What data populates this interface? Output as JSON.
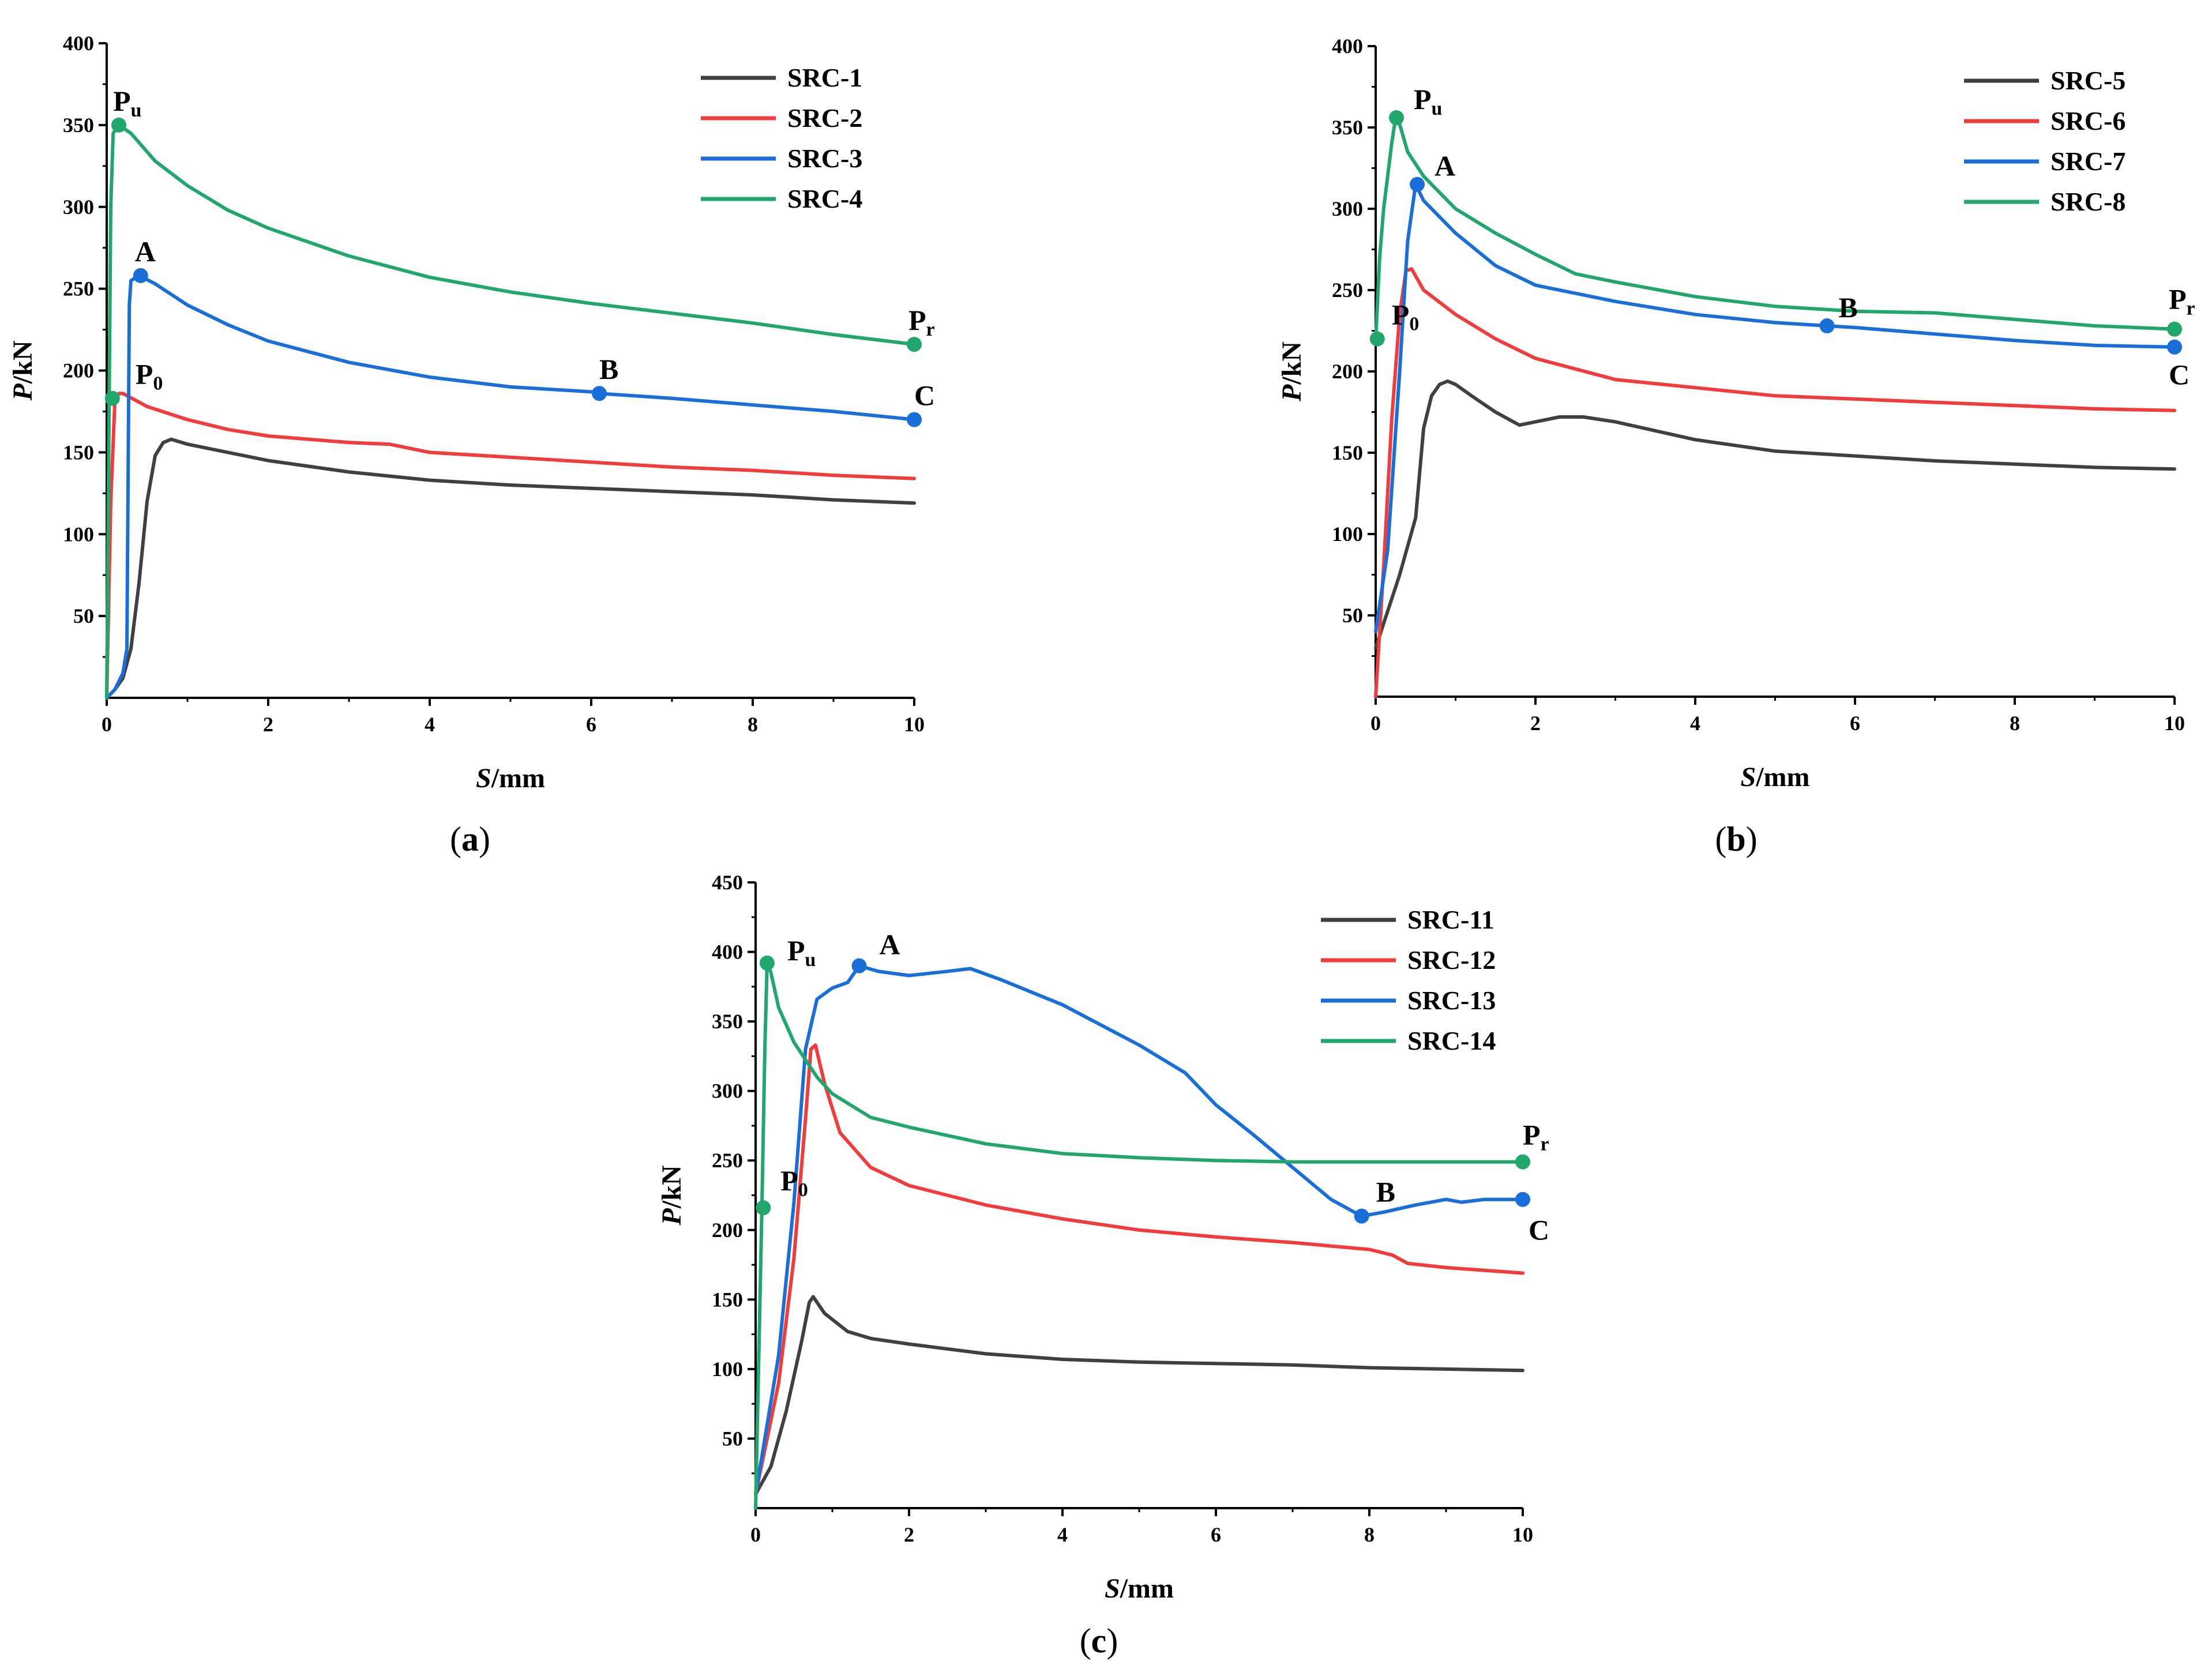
{
  "chart_data": [
    {
      "type": "line",
      "panel_label": "(a)",
      "xlabel": "S/mm",
      "ylabel": "P/kN",
      "xlim": [
        0,
        10
      ],
      "ylim": [
        0,
        400
      ],
      "xticks": [
        "0",
        "2",
        "4",
        "6",
        "8",
        "10"
      ],
      "yticks": [
        "50",
        "100",
        "150",
        "200",
        "250",
        "300",
        "350",
        "400"
      ],
      "legend_position": "top-right",
      "series": [
        {
          "name": "SRC-1",
          "color": "#404040",
          "x": [
            0,
            0.1,
            0.2,
            0.3,
            0.4,
            0.5,
            0.6,
            0.7,
            0.8,
            1,
            1.5,
            2,
            3,
            4,
            5,
            6,
            7,
            8,
            9,
            10
          ],
          "y": [
            0,
            5,
            12,
            30,
            70,
            120,
            148,
            156,
            158,
            155,
            150,
            145,
            138,
            133,
            130,
            128,
            126,
            124,
            121,
            119
          ]
        },
        {
          "name": "SRC-2",
          "color": "#f03c3c",
          "x": [
            0,
            0.05,
            0.1,
            0.15,
            0.2,
            0.5,
            1,
            1.5,
            2,
            3,
            3.5,
            4,
            5,
            6,
            7,
            8,
            9,
            10
          ],
          "y": [
            0,
            120,
            180,
            186,
            186,
            178,
            170,
            164,
            160,
            156,
            155,
            150,
            147,
            144,
            141,
            139,
            136,
            134
          ]
        },
        {
          "name": "SRC-3",
          "color": "#1a6ed8",
          "x": [
            0,
            0.1,
            0.2,
            0.25,
            0.28,
            0.3,
            0.4,
            0.6,
            1,
            1.5,
            2,
            3,
            4,
            5,
            6,
            6.1,
            7,
            8,
            9,
            10
          ],
          "y": [
            0,
            5,
            15,
            30,
            240,
            255,
            258,
            253,
            240,
            228,
            218,
            205,
            196,
            190,
            187,
            186,
            183,
            179,
            175,
            170
          ]
        },
        {
          "name": "SRC-4",
          "color": "#21a66b",
          "x": [
            0,
            0.05,
            0.08,
            0.15,
            0.3,
            0.6,
            1,
            1.5,
            2,
            3,
            4,
            5,
            6,
            7,
            8,
            9,
            10
          ],
          "y": [
            0,
            300,
            345,
            350,
            345,
            328,
            313,
            298,
            287,
            270,
            257,
            248,
            241,
            235,
            229,
            222,
            216
          ]
        }
      ],
      "markers": [
        {
          "label": "P",
          "sub": "u",
          "x": 0.15,
          "y": 350,
          "color": "#21a66b",
          "dx": -10,
          "dy": -25
        },
        {
          "label": "P",
          "sub": "0",
          "x": 0.07,
          "y": 183,
          "color": "#21a66b",
          "dx": 40,
          "dy": -25
        },
        {
          "label": "A",
          "x": 0.42,
          "y": 258,
          "color": "#1a6ed8",
          "dx": -10,
          "dy": -25
        },
        {
          "label": "B",
          "x": 6.1,
          "y": 186,
          "color": "#1a6ed8",
          "dx": 0,
          "dy": -25
        },
        {
          "label": "C",
          "x": 10,
          "y": 170,
          "color": "#1a6ed8",
          "dx": 0,
          "dy": -25
        },
        {
          "label": "P",
          "sub": "r",
          "x": 10,
          "y": 216,
          "color": "#21a66b",
          "dx": -10,
          "dy": -25
        }
      ]
    },
    {
      "type": "line",
      "panel_label": "(b)",
      "xlabel": "S/mm",
      "ylabel": "P/kN",
      "xlim": [
        0,
        10
      ],
      "ylim": [
        0,
        400
      ],
      "xticks": [
        "0",
        "2",
        "4",
        "6",
        "8",
        "10"
      ],
      "yticks": [
        "50",
        "100",
        "150",
        "200",
        "250",
        "300",
        "350",
        "400"
      ],
      "legend_position": "top-right",
      "series": [
        {
          "name": "SRC-5",
          "color": "#404040",
          "x": [
            0,
            0.1,
            0.3,
            0.5,
            0.6,
            0.7,
            0.8,
            0.9,
            1,
            1.2,
            1.5,
            1.8,
            2,
            2.3,
            2.6,
            3,
            4,
            5,
            6,
            7,
            8,
            9,
            10
          ],
          "y": [
            30,
            45,
            75,
            110,
            165,
            185,
            192,
            194,
            192,
            185,
            175,
            167,
            169,
            172,
            172,
            169,
            158,
            151,
            148,
            145,
            143,
            141,
            140
          ]
        },
        {
          "name": "SRC-6",
          "color": "#f03c3c",
          "x": [
            0,
            0.1,
            0.2,
            0.3,
            0.38,
            0.45,
            0.6,
            1,
            1.5,
            2,
            3,
            4,
            5,
            6,
            7,
            8,
            9,
            10
          ],
          "y": [
            0,
            80,
            170,
            235,
            262,
            263,
            250,
            235,
            220,
            208,
            195,
            190,
            185,
            183,
            181,
            179,
            177,
            176
          ]
        },
        {
          "name": "SRC-7",
          "color": "#1a6ed8",
          "x": [
            0,
            0.15,
            0.3,
            0.4,
            0.5,
            0.6,
            1,
            1.5,
            2,
            3,
            4,
            5,
            5.65,
            6,
            7,
            8,
            9,
            10
          ],
          "y": [
            40,
            90,
            200,
            280,
            315,
            305,
            285,
            265,
            253,
            243,
            235,
            230,
            228,
            227,
            223,
            219,
            216,
            215
          ]
        },
        {
          "name": "SRC-8",
          "color": "#21a66b",
          "x": [
            0,
            0.05,
            0.1,
            0.2,
            0.25,
            0.3,
            0.4,
            0.6,
            1,
            1.5,
            2,
            2.5,
            3,
            4,
            5,
            6,
            7,
            8,
            9,
            10
          ],
          "y": [
            219,
            270,
            300,
            340,
            356,
            352,
            335,
            320,
            300,
            285,
            272,
            260,
            255,
            246,
            240,
            237,
            236,
            232,
            228,
            226
          ]
        }
      ],
      "markers": [
        {
          "label": "P",
          "sub": "u",
          "x": 0.26,
          "y": 356,
          "color": "#21a66b",
          "dx": 30,
          "dy": -15
        },
        {
          "label": "P",
          "sub": "0",
          "x": 0.02,
          "y": 220,
          "color": "#21a66b",
          "dx": 25,
          "dy": -25
        },
        {
          "label": "A",
          "x": 0.52,
          "y": 315,
          "color": "#1a6ed8",
          "dx": 30,
          "dy": -15
        },
        {
          "label": "B",
          "x": 5.65,
          "y": 228,
          "color": "#1a6ed8",
          "dx": 20,
          "dy": -15
        },
        {
          "label": "C",
          "x": 10,
          "y": 215,
          "color": "#1a6ed8",
          "dx": -10,
          "dy": 65
        },
        {
          "label": "P",
          "sub": "r",
          "x": 10,
          "y": 226,
          "color": "#21a66b",
          "dx": -10,
          "dy": -35
        }
      ]
    },
    {
      "type": "line",
      "panel_label": "(c)",
      "xlabel": "S/mm",
      "ylabel": "P/kN",
      "xlim": [
        0,
        10
      ],
      "ylim": [
        0,
        450
      ],
      "xticks": [
        "0",
        "2",
        "4",
        "6",
        "8",
        "10"
      ],
      "yticks": [
        "50",
        "100",
        "150",
        "200",
        "250",
        "300",
        "350",
        "400",
        "450"
      ],
      "legend_position": "top-right",
      "series": [
        {
          "name": "SRC-11",
          "color": "#404040",
          "x": [
            0,
            0.2,
            0.4,
            0.6,
            0.7,
            0.75,
            0.9,
            1.2,
            1.5,
            2,
            3,
            4,
            5,
            6,
            7,
            8,
            9,
            10
          ],
          "y": [
            10,
            30,
            70,
            120,
            148,
            152,
            140,
            127,
            122,
            118,
            111,
            107,
            105,
            104,
            103,
            101,
            100,
            99
          ]
        },
        {
          "name": "SRC-12",
          "color": "#f03c3c",
          "x": [
            0,
            0.3,
            0.5,
            0.65,
            0.72,
            0.78,
            0.9,
            1.1,
            1.5,
            2,
            3,
            4,
            5,
            6,
            7,
            8,
            8.3,
            8.5,
            9,
            10
          ],
          "y": [
            10,
            90,
            180,
            280,
            330,
            333,
            305,
            270,
            245,
            232,
            218,
            208,
            200,
            195,
            191,
            186,
            182,
            176,
            173,
            169
          ]
        },
        {
          "name": "SRC-13",
          "color": "#1a6ed8",
          "x": [
            0,
            0.3,
            0.5,
            0.65,
            0.8,
            1,
            1.2,
            1.35,
            1.6,
            2,
            2.5,
            2.8,
            3.2,
            4,
            5,
            5.6,
            6,
            6.5,
            7,
            7.5,
            7.9,
            8.2,
            8.6,
            9,
            9.2,
            9.5,
            10
          ],
          "y": [
            10,
            110,
            220,
            330,
            366,
            374,
            378,
            390,
            386,
            383,
            386,
            388,
            380,
            362,
            333,
            313,
            290,
            268,
            245,
            222,
            210,
            213,
            218,
            222,
            220,
            222,
            222
          ]
        },
        {
          "name": "SRC-14",
          "color": "#21a66b",
          "x": [
            0,
            0.08,
            0.12,
            0.15,
            0.2,
            0.3,
            0.5,
            0.8,
            1,
            1.5,
            2,
            3,
            4,
            5,
            6,
            7,
            8,
            9,
            10
          ],
          "y": [
            0,
            210,
            330,
            393,
            385,
            360,
            335,
            310,
            298,
            281,
            274,
            262,
            255,
            252,
            250,
            249,
            249,
            249,
            249
          ]
        }
      ],
      "markers": [
        {
          "label": "P",
          "sub": "u",
          "x": 0.15,
          "y": 392,
          "color": "#21a66b",
          "dx": 35,
          "dy": -5
        },
        {
          "label": "P",
          "sub": "0",
          "x": 0.1,
          "y": 216,
          "color": "#21a66b",
          "dx": 30,
          "dy": -30
        },
        {
          "label": "A",
          "x": 1.35,
          "y": 390,
          "color": "#1a6ed8",
          "dx": 35,
          "dy": -20
        },
        {
          "label": "B",
          "x": 7.9,
          "y": 210,
          "color": "#1a6ed8",
          "dx": 25,
          "dy": -25
        },
        {
          "label": "C",
          "x": 10,
          "y": 222,
          "color": "#1a6ed8",
          "dx": 10,
          "dy": 70
        },
        {
          "label": "P",
          "sub": "r",
          "x": 10,
          "y": 249,
          "color": "#21a66b",
          "dx": 0,
          "dy": -30
        }
      ]
    }
  ]
}
